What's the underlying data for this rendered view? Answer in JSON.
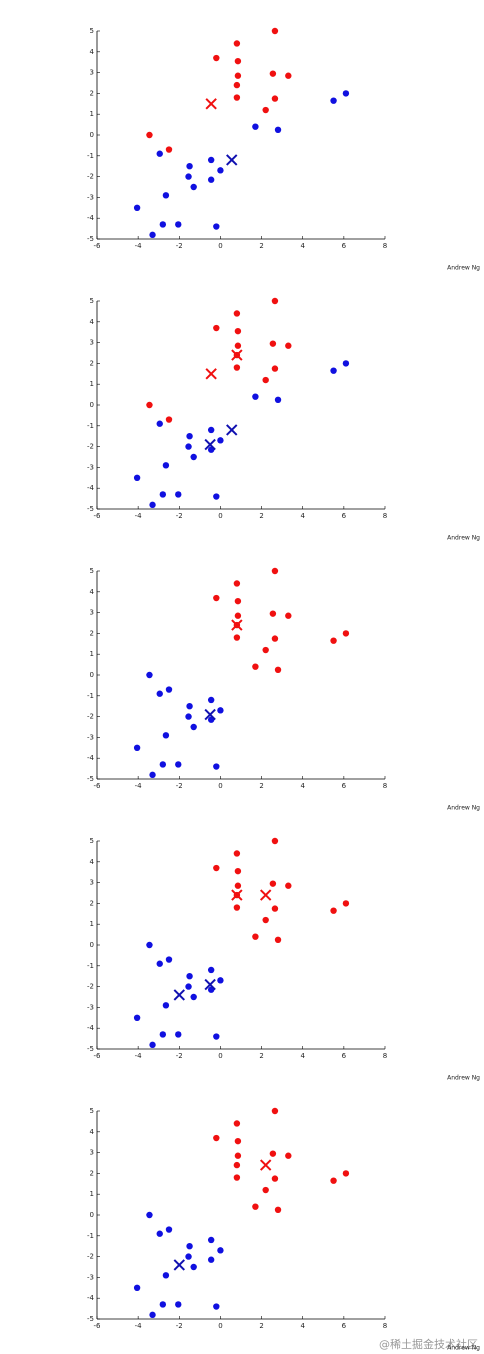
{
  "chart_data": [
    {
      "type": "scatter",
      "xlim": [
        -6,
        8
      ],
      "ylim": [
        -5,
        5
      ],
      "xticks": [
        -6,
        -4,
        -2,
        0,
        2,
        4,
        6,
        8
      ],
      "yticks": [
        -5,
        -4,
        -3,
        -2,
        -1,
        0,
        1,
        2,
        3,
        4,
        5
      ],
      "annotation": "Andrew Ng",
      "series": [
        {
          "color": "#f01010",
          "marker": "circle",
          "x": [
            2.65,
            0.8,
            -0.2,
            0.85,
            2.55,
            3.3,
            0.85,
            0.8,
            0.8,
            2.65,
            2.2,
            -3.45,
            -2.5
          ],
          "y": [
            5.0,
            4.4,
            3.7,
            3.55,
            2.95,
            2.85,
            2.85,
            2.4,
            1.8,
            1.75,
            1.2,
            0.0,
            -0.7
          ]
        },
        {
          "color": "#1010e0",
          "marker": "circle",
          "x": [
            6.1,
            5.5,
            1.7,
            2.8,
            -2.95,
            -1.5,
            -0.45,
            0,
            -1.55,
            -0.45,
            -1.3,
            -2.65,
            -4.05,
            -2.8,
            -2.05,
            -0.2,
            -3.3
          ],
          "y": [
            2.0,
            1.65,
            0.4,
            0.25,
            -0.9,
            -1.5,
            -1.2,
            -1.7,
            -2.0,
            -2.15,
            -2.5,
            -2.9,
            -3.5,
            -4.3,
            -4.3,
            -4.4,
            -4.8
          ]
        },
        {
          "color": "#f01010",
          "marker": "x",
          "x": [
            -0.45
          ],
          "y": [
            1.5
          ]
        },
        {
          "color": "#1010b0",
          "marker": "x",
          "x": [
            0.55
          ],
          "y": [
            -1.2
          ]
        }
      ]
    },
    {
      "type": "scatter",
      "xlim": [
        -6,
        8
      ],
      "ylim": [
        -5,
        5
      ],
      "xticks": [
        -6,
        -4,
        -2,
        0,
        2,
        4,
        6,
        8
      ],
      "yticks": [
        -5,
        -4,
        -3,
        -2,
        -1,
        0,
        1,
        2,
        3,
        4,
        5
      ],
      "annotation": "Andrew Ng",
      "series": [
        {
          "color": "#f01010",
          "marker": "circle",
          "x": [
            2.65,
            0.8,
            -0.2,
            0.85,
            2.55,
            3.3,
            0.85,
            0.8,
            0.8,
            2.65,
            2.2,
            -3.45,
            -2.5
          ],
          "y": [
            5.0,
            4.4,
            3.7,
            3.55,
            2.95,
            2.85,
            2.85,
            2.4,
            1.8,
            1.75,
            1.2,
            0.0,
            -0.7
          ]
        },
        {
          "color": "#1010e0",
          "marker": "circle",
          "x": [
            6.1,
            5.5,
            1.7,
            2.8,
            -2.95,
            -1.5,
            -0.45,
            0,
            -1.55,
            -0.45,
            -1.3,
            -2.65,
            -4.05,
            -2.8,
            -2.05,
            -0.2,
            -3.3
          ],
          "y": [
            2.0,
            1.65,
            0.4,
            0.25,
            -0.9,
            -1.5,
            -1.2,
            -1.7,
            -2.0,
            -2.15,
            -2.5,
            -2.9,
            -3.5,
            -4.3,
            -4.3,
            -4.4,
            -4.8
          ]
        },
        {
          "color": "#f01010",
          "marker": "x",
          "x": [
            -0.45,
            0.8
          ],
          "y": [
            1.5,
            2.4
          ]
        },
        {
          "color": "#1010b0",
          "marker": "x",
          "x": [
            0.55,
            -0.5
          ],
          "y": [
            -1.2,
            -1.9
          ]
        }
      ]
    },
    {
      "type": "scatter",
      "xlim": [
        -6,
        8
      ],
      "ylim": [
        -5,
        5
      ],
      "xticks": [
        -6,
        -4,
        -2,
        0,
        2,
        4,
        6,
        8
      ],
      "yticks": [
        -5,
        -4,
        -3,
        -2,
        -1,
        0,
        1,
        2,
        3,
        4,
        5
      ],
      "annotation": "Andrew Ng",
      "series": [
        {
          "color": "#f01010",
          "marker": "circle",
          "x": [
            2.65,
            0.8,
            -0.2,
            0.85,
            2.55,
            3.3,
            0.85,
            0.8,
            0.8,
            2.65,
            2.2,
            6.1,
            5.5,
            1.7,
            2.8
          ],
          "y": [
            5.0,
            4.4,
            3.7,
            3.55,
            2.95,
            2.85,
            2.85,
            2.4,
            1.8,
            1.75,
            1.2,
            2.0,
            1.65,
            0.4,
            0.25
          ]
        },
        {
          "color": "#1010e0",
          "marker": "circle",
          "x": [
            -3.45,
            -2.5,
            -2.95,
            -1.5,
            -0.45,
            0,
            -1.55,
            -0.45,
            -1.3,
            -2.65,
            -4.05,
            -2.8,
            -2.05,
            -0.2,
            -3.3
          ],
          "y": [
            0.0,
            -0.7,
            -0.9,
            -1.5,
            -1.2,
            -1.7,
            -2.0,
            -2.15,
            -2.5,
            -2.9,
            -3.5,
            -4.3,
            -4.3,
            -4.4,
            -4.8
          ]
        },
        {
          "color": "#f01010",
          "marker": "x",
          "x": [
            0.8
          ],
          "y": [
            2.4
          ]
        },
        {
          "color": "#1010b0",
          "marker": "x",
          "x": [
            -0.5
          ],
          "y": [
            -1.9
          ]
        }
      ]
    },
    {
      "type": "scatter",
      "xlim": [
        -6,
        8
      ],
      "ylim": [
        -5,
        5
      ],
      "xticks": [
        -6,
        -4,
        -2,
        0,
        2,
        4,
        6,
        8
      ],
      "yticks": [
        -5,
        -4,
        -3,
        -2,
        -1,
        0,
        1,
        2,
        3,
        4,
        5
      ],
      "annotation": "Andrew Ng",
      "series": [
        {
          "color": "#f01010",
          "marker": "circle",
          "x": [
            2.65,
            0.8,
            -0.2,
            0.85,
            2.55,
            3.3,
            0.85,
            0.8,
            0.8,
            2.65,
            2.2,
            6.1,
            5.5,
            1.7,
            2.8
          ],
          "y": [
            5.0,
            4.4,
            3.7,
            3.55,
            2.95,
            2.85,
            2.85,
            2.4,
            1.8,
            1.75,
            1.2,
            2.0,
            1.65,
            0.4,
            0.25
          ]
        },
        {
          "color": "#1010e0",
          "marker": "circle",
          "x": [
            -3.45,
            -2.5,
            -2.95,
            -1.5,
            -0.45,
            0,
            -1.55,
            -0.45,
            -1.3,
            -2.65,
            -4.05,
            -2.8,
            -2.05,
            -0.2,
            -3.3
          ],
          "y": [
            0.0,
            -0.7,
            -0.9,
            -1.5,
            -1.2,
            -1.7,
            -2.0,
            -2.15,
            -2.5,
            -2.9,
            -3.5,
            -4.3,
            -4.3,
            -4.4,
            -4.8
          ]
        },
        {
          "color": "#f01010",
          "marker": "x",
          "x": [
            0.8,
            2.2
          ],
          "y": [
            2.4,
            2.4
          ]
        },
        {
          "color": "#1010b0",
          "marker": "x",
          "x": [
            -0.5,
            -2.0
          ],
          "y": [
            -1.9,
            -2.4
          ]
        }
      ]
    },
    {
      "type": "scatter",
      "xlim": [
        -6,
        8
      ],
      "ylim": [
        -5,
        5
      ],
      "xticks": [
        -6,
        -4,
        -2,
        0,
        2,
        4,
        6,
        8
      ],
      "yticks": [
        -5,
        -4,
        -3,
        -2,
        -1,
        0,
        1,
        2,
        3,
        4,
        5
      ],
      "annotation": "Andrew Ng",
      "series": [
        {
          "color": "#f01010",
          "marker": "circle",
          "x": [
            2.65,
            0.8,
            -0.2,
            0.85,
            2.55,
            3.3,
            0.85,
            0.8,
            0.8,
            2.65,
            2.2,
            6.1,
            5.5,
            1.7,
            2.8
          ],
          "y": [
            5.0,
            4.4,
            3.7,
            3.55,
            2.95,
            2.85,
            2.85,
            2.4,
            1.8,
            1.75,
            1.2,
            2.0,
            1.65,
            0.4,
            0.25
          ]
        },
        {
          "color": "#1010e0",
          "marker": "circle",
          "x": [
            -3.45,
            -2.5,
            -2.95,
            -1.5,
            -0.45,
            0,
            -1.55,
            -0.45,
            -1.3,
            -2.65,
            -4.05,
            -2.8,
            -2.05,
            -0.2,
            -3.3
          ],
          "y": [
            0.0,
            -0.7,
            -0.9,
            -1.5,
            -1.2,
            -1.7,
            -2.0,
            -2.15,
            -2.5,
            -2.9,
            -3.5,
            -4.3,
            -4.3,
            -4.4,
            -4.8
          ]
        },
        {
          "color": "#f01010",
          "marker": "x",
          "x": [
            2.2
          ],
          "y": [
            2.4
          ]
        },
        {
          "color": "#1010b0",
          "marker": "x",
          "x": [
            -2.0
          ],
          "y": [
            -2.4
          ]
        }
      ]
    }
  ],
  "watermark": "@稀土掘金技术社区"
}
